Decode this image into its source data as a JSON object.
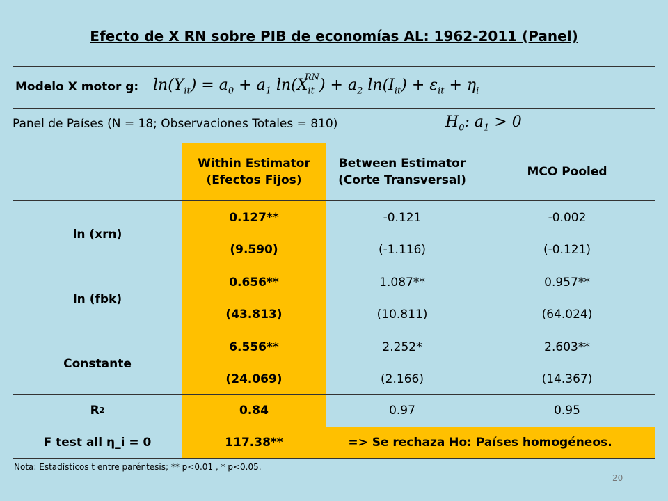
{
  "title": "Efecto de X RN sobre PIB de economías AL: 1962-2011 (Panel)",
  "model": {
    "label": "Modelo X motor g:",
    "formula": [
      {
        "text": "ln("
      },
      {
        "text": "Y",
        "sub": "it"
      },
      {
        "text": ") = "
      },
      {
        "text": "a",
        "sub": "0"
      },
      {
        "text": " + "
      },
      {
        "text": "a",
        "sub": "1"
      },
      {
        "text": " ln("
      },
      {
        "text": "X",
        "sub": "it",
        "sup": "RN"
      },
      {
        "text": ") + "
      },
      {
        "text": "a",
        "sub": "2"
      },
      {
        "text": " ln("
      },
      {
        "text": "I",
        "sub": "it"
      },
      {
        "text": ") + "
      },
      {
        "text": "ε",
        "sub": "it"
      },
      {
        "text": " + "
      },
      {
        "text": "η",
        "sub": "i"
      }
    ]
  },
  "panel": {
    "text": "Panel de Países (N = 18; Observaciones Totales = 810)",
    "hypothesis": [
      {
        "text": "H",
        "sub": "0"
      },
      {
        "text": ": "
      },
      {
        "text": "a",
        "sub": "1"
      },
      {
        "text": " > 0"
      }
    ]
  },
  "table": {
    "headers": [
      [
        "Within Estimator",
        "(Efectos Fijos)"
      ],
      [
        "Between Estimator",
        "(Corte Transversal)"
      ],
      [
        "MCO Pooled"
      ]
    ],
    "rows": [
      {
        "label": "ln (xrn)",
        "coef": [
          "0.127**",
          "-0.121",
          "-0.002"
        ],
        "t": [
          "(9.590)",
          "(-1.116)",
          "(-0.121)"
        ]
      },
      {
        "label": "ln (fbk)",
        "coef": [
          "0.656**",
          "1.087**",
          "0.957**"
        ],
        "t": [
          "(43.813)",
          "(10.811)",
          "(64.024)"
        ]
      },
      {
        "label": "Constante",
        "coef": [
          "6.556**",
          "2.252*",
          "2.603**"
        ],
        "t": [
          "(24.069)",
          "(2.166)",
          "(14.367)"
        ]
      }
    ],
    "r2": {
      "label": "R",
      "sup": "2",
      "values": [
        "0.84",
        "0.97",
        "0.95"
      ]
    },
    "ftest": {
      "label": "F test all η_i = 0",
      "value": "117.38**",
      "conclusion": "=> Se rechaza Ho: Países homogéneos."
    }
  },
  "note": "Nota: Estadísticos t entre paréntesis; ** p<0.01 , * p<0.05.",
  "page_number": "20"
}
